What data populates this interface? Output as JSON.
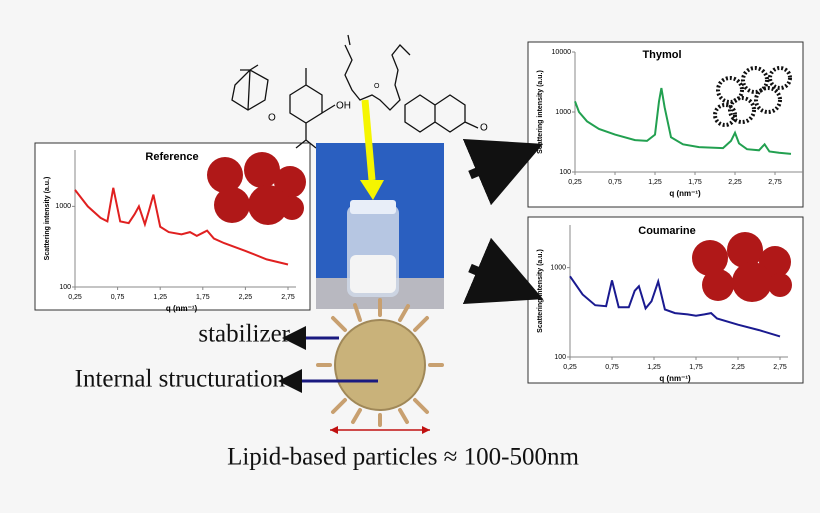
{
  "charts": [
    {
      "type": "line",
      "title": "Reference",
      "ylabel": "Scattering intensity (a.u.)",
      "xlabel": "q (nm⁻¹)",
      "color": "#e02020",
      "log_y": true,
      "x": [
        0.25,
        0.4,
        0.55,
        0.63,
        0.7,
        0.78,
        0.88,
        0.95,
        1.0,
        1.07,
        1.12,
        1.17,
        1.25,
        1.35,
        1.5,
        1.6,
        1.68,
        1.75,
        1.8,
        1.88,
        2.0,
        2.25,
        2.5,
        2.75
      ],
      "values": [
        1600,
        1000,
        720,
        650,
        1700,
        650,
        620,
        800,
        1000,
        600,
        900,
        1400,
        560,
        480,
        450,
        480,
        430,
        470,
        500,
        400,
        350,
        280,
        220,
        190
      ],
      "xlim": [
        0.25,
        2.75
      ],
      "ylim": [
        100,
        5000
      ],
      "xticks": [
        {
          "value": 0.25,
          "label": "0,25"
        },
        {
          "value": 0.75,
          "label": "0,75"
        },
        {
          "value": 1.25,
          "label": "1,25"
        },
        {
          "value": 1.75,
          "label": "1,75"
        },
        {
          "value": 2.25,
          "label": "2,25"
        },
        {
          "value": 2.75,
          "label": "2,75"
        }
      ],
      "yticks": [
        100,
        1000
      ]
    },
    {
      "type": "line",
      "title": "Thymol",
      "ylabel": "Scattering intensity (a.u.)",
      "xlabel": "q (nm⁻¹)",
      "color": "#22a050",
      "log_y": true,
      "x": [
        0.25,
        0.3,
        0.4,
        0.55,
        0.75,
        1.0,
        1.15,
        1.25,
        1.3,
        1.33,
        1.37,
        1.45,
        1.6,
        1.8,
        2.1,
        2.2,
        2.25,
        2.3,
        2.4,
        2.55,
        2.62,
        2.68,
        2.8,
        2.95
      ],
      "values": [
        1500,
        1000,
        700,
        520,
        420,
        340,
        330,
        420,
        1500,
        2500,
        1200,
        380,
        290,
        260,
        250,
        330,
        450,
        300,
        240,
        230,
        290,
        220,
        210,
        200
      ],
      "xlim": [
        0.25,
        3.0
      ],
      "ylim": [
        100,
        10000
      ],
      "xticks": [
        {
          "value": 0.25,
          "label": "0,25"
        },
        {
          "value": 0.75,
          "label": "0,75"
        },
        {
          "value": 1.25,
          "label": "1,25"
        },
        {
          "value": 1.75,
          "label": "1,75"
        },
        {
          "value": 2.25,
          "label": "2,25"
        },
        {
          "value": 2.75,
          "label": "2,75"
        }
      ],
      "yticks": [
        100,
        1000,
        10000
      ]
    },
    {
      "type": "line",
      "title": "Coumarine",
      "ylabel": "Scattering intensity (a.u.)",
      "xlabel": "q (nm⁻¹)",
      "color": "#1a1a90",
      "log_y": true,
      "x": [
        0.25,
        0.4,
        0.55,
        0.68,
        0.75,
        0.83,
        0.95,
        1.02,
        1.07,
        1.15,
        1.22,
        1.3,
        1.38,
        1.5,
        1.65,
        1.75,
        1.85,
        1.93,
        2.0,
        2.25,
        2.5,
        2.75
      ],
      "values": [
        800,
        500,
        380,
        370,
        720,
        360,
        360,
        550,
        620,
        350,
        420,
        700,
        340,
        310,
        300,
        290,
        300,
        310,
        270,
        230,
        200,
        170
      ],
      "xlim": [
        0.25,
        2.75
      ],
      "ylim": [
        100,
        3000
      ],
      "xticks": [
        {
          "value": 0.25,
          "label": "0,25"
        },
        {
          "value": 0.75,
          "label": "0,75"
        },
        {
          "value": 1.25,
          "label": "1,25"
        },
        {
          "value": 1.75,
          "label": "1,75"
        },
        {
          "value": 2.25,
          "label": "2,25"
        },
        {
          "value": 2.75,
          "label": "2,75"
        }
      ],
      "yticks": [
        100,
        1000
      ]
    }
  ],
  "labels": {
    "stabilizer": "stabilizer",
    "structuration": "Internal structuration",
    "size": "Lipid-based particles ≈ 100-500nm",
    "oh": "OH",
    "o1": "O",
    "o2": "O",
    "o3": "O"
  }
}
